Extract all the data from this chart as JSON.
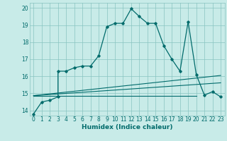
{
  "xlabel": "Humidex (Indice chaleur)",
  "background_color": "#c8ebe8",
  "grid_color": "#88c4c0",
  "line_color": "#006b6b",
  "xlim": [
    -0.5,
    23.5
  ],
  "ylim": [
    13.7,
    20.3
  ],
  "xtick_labels": [
    "0",
    "1",
    "2",
    "3",
    "4",
    "5",
    "6",
    "7",
    "8",
    "9",
    "10",
    "11",
    "12",
    "13",
    "14",
    "15",
    "16",
    "17",
    "18",
    "19",
    "20",
    "21",
    "22",
    "23"
  ],
  "xtick_pos": [
    0,
    1,
    2,
    3,
    4,
    5,
    6,
    7,
    8,
    9,
    10,
    11,
    12,
    13,
    14,
    15,
    16,
    17,
    18,
    19,
    20,
    21,
    22,
    23
  ],
  "ytick_pos": [
    14,
    15,
    16,
    17,
    18,
    19,
    20
  ],
  "ytick_labels": [
    "14",
    "15",
    "16",
    "17",
    "18",
    "19",
    "20"
  ],
  "main_line": {
    "x": [
      0,
      1,
      2,
      3,
      3,
      4,
      5,
      6,
      7,
      8,
      9,
      10,
      11,
      12,
      13,
      14,
      15,
      16,
      17,
      18,
      19,
      20,
      21,
      22,
      23
    ],
    "y": [
      13.8,
      14.5,
      14.6,
      14.8,
      16.3,
      16.3,
      16.5,
      16.6,
      16.6,
      17.2,
      18.9,
      19.1,
      19.1,
      19.95,
      19.5,
      19.1,
      19.1,
      17.8,
      17.0,
      16.3,
      19.2,
      16.1,
      14.9,
      15.1,
      14.8
    ]
  },
  "flat_line": {
    "x": [
      0,
      20
    ],
    "y": [
      14.87,
      14.87
    ]
  },
  "diagonal_line1": {
    "x": [
      0,
      23
    ],
    "y": [
      14.87,
      15.62
    ]
  },
  "diagonal_line2": {
    "x": [
      0,
      23
    ],
    "y": [
      14.87,
      16.05
    ]
  }
}
